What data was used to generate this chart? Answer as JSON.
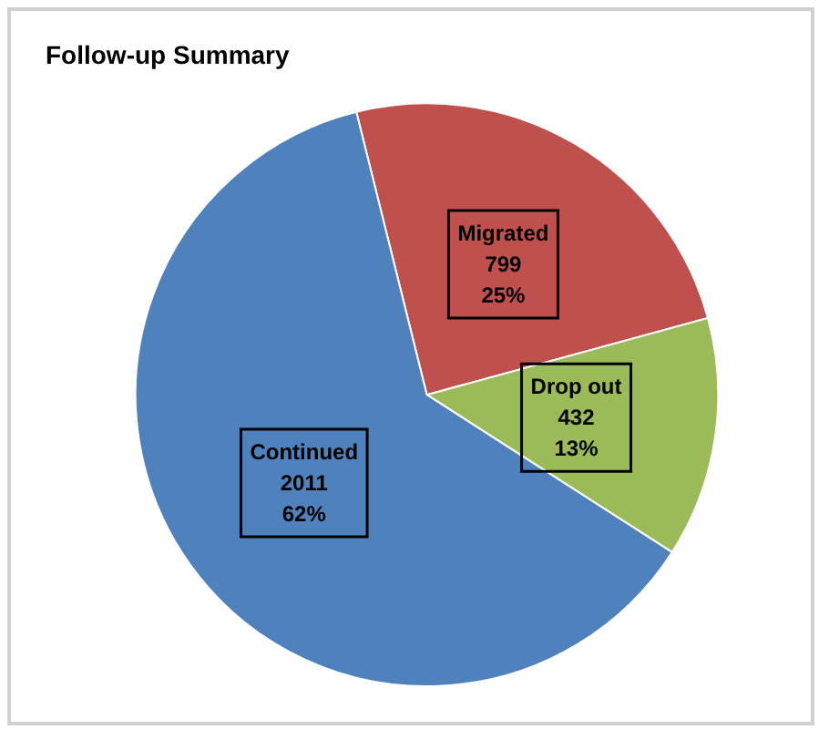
{
  "chart_data": {
    "type": "pie",
    "title": "Follow-up Summary",
    "categories": [
      "Migrated",
      "Drop out",
      "Continued"
    ],
    "values": [
      799,
      432,
      2011
    ],
    "colors": [
      "#c0504d",
      "#9bbb59",
      "#4f81bd"
    ],
    "value_labels": [
      "799\n25%",
      "432\n13%",
      "2011\n62%"
    ],
    "legend": false
  }
}
